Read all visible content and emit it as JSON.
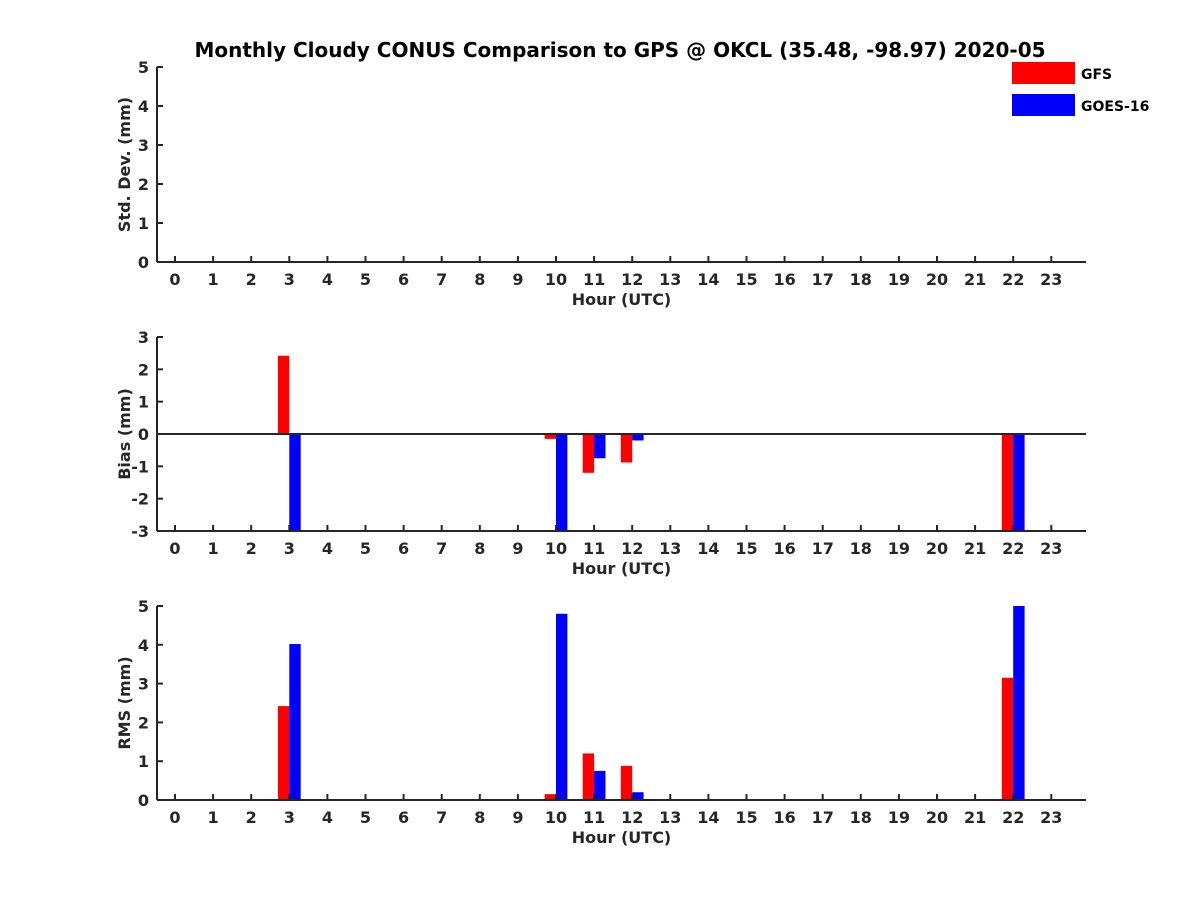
{
  "title": "Monthly Cloudy CONUS Comparison to GPS @ OKCL (35.48, -98.97) 2020-05",
  "legend": {
    "placement": "top-right",
    "items": [
      {
        "label": "GFS",
        "color": "#ff0000"
      },
      {
        "label": "GOES-16",
        "color": "#0000ff"
      }
    ]
  },
  "chart_data": [
    {
      "type": "bar",
      "ylabel": "Std. Dev. (mm)",
      "xlabel": "Hour (UTC)",
      "x": [
        0,
        1,
        2,
        3,
        4,
        5,
        6,
        7,
        8,
        9,
        10,
        11,
        12,
        13,
        14,
        15,
        16,
        17,
        18,
        19,
        20,
        21,
        22,
        23
      ],
      "ylim": [
        0,
        5
      ],
      "yticks": [
        0,
        1,
        2,
        3,
        4,
        5
      ],
      "zero_line": false,
      "series": [
        {
          "name": "GFS",
          "color": "#ff0000",
          "values": [
            0,
            0,
            0,
            0,
            0,
            0,
            0,
            0,
            0,
            0,
            0,
            0,
            0,
            0,
            0,
            0,
            0,
            0,
            0,
            0,
            0,
            0,
            0,
            0
          ]
        },
        {
          "name": "GOES-16",
          "color": "#0000ff",
          "values": [
            0,
            0,
            0,
            0,
            0,
            0,
            0,
            0,
            0,
            0,
            0,
            0,
            0,
            0,
            0,
            0,
            0,
            0,
            0,
            0,
            0,
            0,
            0,
            0
          ]
        }
      ]
    },
    {
      "type": "bar",
      "ylabel": "Bias (mm)",
      "xlabel": "Hour (UTC)",
      "x": [
        0,
        1,
        2,
        3,
        4,
        5,
        6,
        7,
        8,
        9,
        10,
        11,
        12,
        13,
        14,
        15,
        16,
        17,
        18,
        19,
        20,
        21,
        22,
        23
      ],
      "ylim": [
        -3,
        3
      ],
      "yticks": [
        -3,
        -2,
        -1,
        0,
        1,
        2,
        3
      ],
      "zero_line": true,
      "series": [
        {
          "name": "GFS",
          "color": "#ff0000",
          "values": [
            0,
            0,
            0,
            2.42,
            0,
            0,
            0,
            0,
            0,
            0,
            -0.15,
            -1.2,
            -0.88,
            0,
            0,
            0,
            0,
            0,
            0,
            0,
            0,
            0,
            -3.0,
            0
          ]
        },
        {
          "name": "GOES-16",
          "color": "#0000ff",
          "values": [
            0,
            0,
            0,
            -3.0,
            0,
            0,
            0,
            0,
            0,
            0,
            -3.0,
            -0.75,
            -0.2,
            0,
            0,
            0,
            0,
            0,
            0,
            0,
            0,
            0,
            -3.0,
            0
          ]
        }
      ]
    },
    {
      "type": "bar",
      "ylabel": "RMS (mm)",
      "xlabel": "Hour (UTC)",
      "x": [
        0,
        1,
        2,
        3,
        4,
        5,
        6,
        7,
        8,
        9,
        10,
        11,
        12,
        13,
        14,
        15,
        16,
        17,
        18,
        19,
        20,
        21,
        22,
        23
      ],
      "ylim": [
        0,
        5
      ],
      "yticks": [
        0,
        1,
        2,
        3,
        4,
        5
      ],
      "zero_line": false,
      "series": [
        {
          "name": "GFS",
          "color": "#ff0000",
          "values": [
            0,
            0,
            0,
            2.42,
            0,
            0,
            0,
            0,
            0,
            0,
            0.15,
            1.2,
            0.88,
            0,
            0,
            0,
            0,
            0,
            0,
            0,
            0,
            0,
            3.15,
            0
          ]
        },
        {
          "name": "GOES-16",
          "color": "#0000ff",
          "values": [
            0,
            0,
            0,
            4.02,
            0,
            0,
            0,
            0,
            0,
            0,
            4.8,
            0.75,
            0.2,
            0,
            0,
            0,
            0,
            0,
            0,
            0,
            0,
            0,
            5.0,
            0
          ]
        }
      ]
    }
  ]
}
